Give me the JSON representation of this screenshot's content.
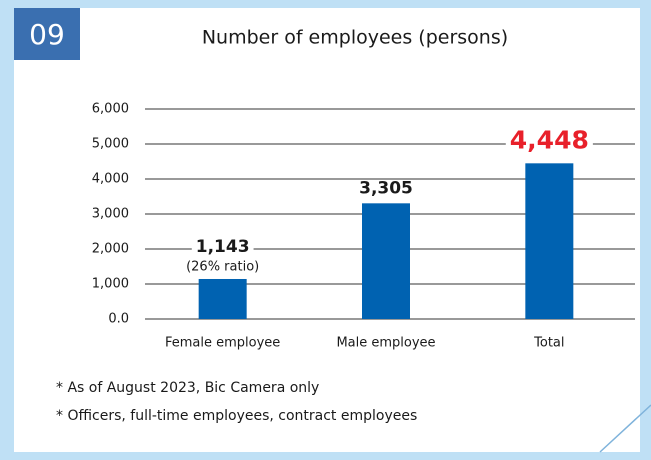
{
  "badge": "09",
  "chart_data": {
    "type": "bar",
    "title": "Number of employees (persons)",
    "categories": [
      "Female employee",
      "Male employee",
      "Total"
    ],
    "values": [
      1143,
      3305,
      4448
    ],
    "value_labels": [
      "1,143",
      "3,305",
      "4,448"
    ],
    "value_label_colors": [
      "#1a1a1a",
      "#1a1a1a",
      "#e8202a"
    ],
    "annotations": [
      "(26% ratio)"
    ],
    "color": "#0062b1",
    "ylim": [
      0,
      6000
    ],
    "yticks": [
      {
        "value": 0,
        "label": "0.0"
      },
      {
        "value": 1000,
        "label": "1,000"
      },
      {
        "value": 2000,
        "label": "2,000"
      },
      {
        "value": 3000,
        "label": "3,000"
      },
      {
        "value": 4000,
        "label": "4,000"
      },
      {
        "value": 5000,
        "label": "5,000"
      },
      {
        "value": 6000,
        "label": "6,000"
      }
    ],
    "grid": true,
    "notes": [
      "* As of August 2023, Bic Camera only",
      "* Officers, full-time employees, contract employees"
    ]
  }
}
